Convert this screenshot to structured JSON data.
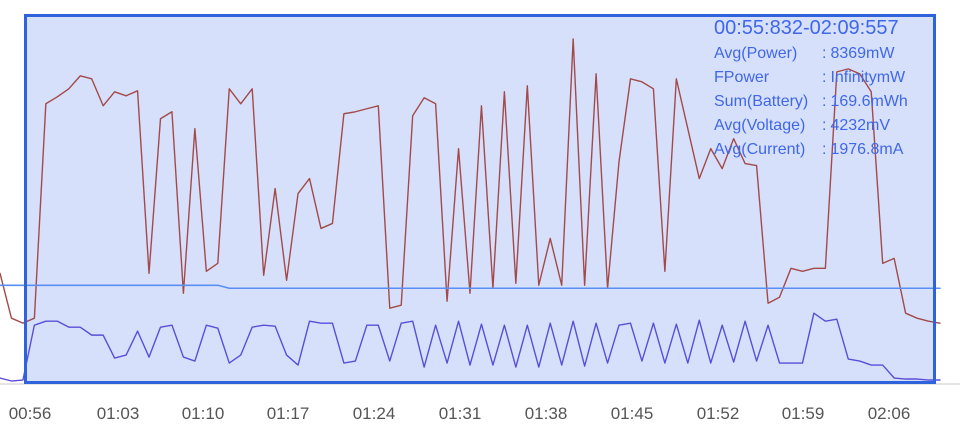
{
  "chart_data": {
    "type": "line",
    "x_ticks": [
      "00:56",
      "01:03",
      "01:10",
      "01:17",
      "01:24",
      "01:31",
      "01:38",
      "01:45",
      "01:52",
      "01:59",
      "02:06"
    ],
    "series": [
      {
        "values": [
          1.1,
          0.65,
          0.6,
          0.65,
          2.8,
          2.87,
          2.95,
          3.08,
          3.05,
          2.78,
          2.92,
          2.88,
          2.93,
          1.1,
          2.65,
          2.72,
          0.9,
          2.55,
          1.12,
          1.2,
          2.95,
          2.8,
          2.95,
          1.08,
          1.95,
          1.03,
          1.9,
          2.05,
          1.55,
          1.6,
          2.7,
          2.72,
          2.75,
          2.78,
          0.75,
          0.78,
          2.68,
          2.86,
          2.8,
          0.82,
          2.35,
          0.9,
          2.78,
          0.95,
          2.92,
          1.0,
          2.98,
          0.98,
          1.45,
          0.98,
          3.45,
          0.98,
          3.1,
          0.95,
          2.22,
          3.05,
          3.02,
          2.95,
          1.12,
          3.05,
          2.55,
          2.05,
          2.35,
          2.15,
          2.45,
          2.2,
          2.18,
          0.8,
          0.86,
          1.15,
          1.12,
          1.15,
          1.15,
          3.12,
          3.15,
          3.1,
          2.92,
          1.2,
          1.25,
          0.7,
          0.65,
          0.62,
          0.6
        ],
        "color": "#a24a4a"
      },
      {
        "values": [
          0.05,
          0.02,
          0.03,
          0.58,
          0.62,
          0.62,
          0.56,
          0.56,
          0.48,
          0.48,
          0.25,
          0.28,
          0.52,
          0.26,
          0.56,
          0.58,
          0.26,
          0.22,
          0.58,
          0.55,
          0.2,
          0.28,
          0.56,
          0.58,
          0.57,
          0.28,
          0.18,
          0.62,
          0.6,
          0.6,
          0.2,
          0.22,
          0.58,
          0.58,
          0.22,
          0.6,
          0.62,
          0.16,
          0.58,
          0.2,
          0.62,
          0.18,
          0.59,
          0.18,
          0.58,
          0.16,
          0.58,
          0.16,
          0.6,
          0.18,
          0.62,
          0.17,
          0.6,
          0.2,
          0.58,
          0.6,
          0.22,
          0.6,
          0.2,
          0.59,
          0.2,
          0.63,
          0.2,
          0.58,
          0.21,
          0.62,
          0.22,
          0.58,
          0.2,
          0.2,
          0.2,
          0.7,
          0.62,
          0.64,
          0.24,
          0.22,
          0.18,
          0.18,
          0.05,
          0.04,
          0.04,
          0.03,
          0.03
        ],
        "color": "#5a4ed8"
      },
      {
        "values": [
          0.98,
          0.98,
          0.98,
          0.98,
          0.98,
          0.98,
          0.98,
          0.98,
          0.98,
          0.98,
          0.98,
          0.98,
          0.98,
          0.98,
          0.98,
          0.98,
          0.98,
          0.98,
          0.98,
          0.98,
          0.95,
          0.95,
          0.95,
          0.95,
          0.95,
          0.95,
          0.95,
          0.95,
          0.95,
          0.95,
          0.95,
          0.95,
          0.95,
          0.95,
          0.95,
          0.95,
          0.95,
          0.95,
          0.95,
          0.95,
          0.95,
          0.95,
          0.95,
          0.95,
          0.95,
          0.95,
          0.95,
          0.95,
          0.95,
          0.95,
          0.95,
          0.95,
          0.95,
          0.95,
          0.95,
          0.95,
          0.95,
          0.95,
          0.95,
          0.95,
          0.95,
          0.95,
          0.95,
          0.95,
          0.95,
          0.95,
          0.95,
          0.95,
          0.95,
          0.95,
          0.95,
          0.95,
          0.95,
          0.95,
          0.95,
          0.95,
          0.95,
          0.95,
          0.95,
          0.95,
          0.95,
          0.95,
          0.95
        ],
        "color": "#5a8ef2"
      }
    ],
    "ylim": [
      0,
      3.6
    ],
    "grid": false
  },
  "overlay": {
    "time_range": "00:55:832-02:09:557",
    "stats": [
      {
        "label": "Avg(Power)",
        "value": "8369mW"
      },
      {
        "label": "FPower",
        "value": "InfinitymW"
      },
      {
        "label": "Sum(Battery)",
        "value": "169.6mWh"
      },
      {
        "label": "Avg(Voltage)",
        "value": "4232mV"
      },
      {
        "label": "Avg(Current)",
        "value": "1976.8mA"
      }
    ]
  },
  "colors": {
    "selection_fill": "#d7e0fb",
    "selection_border": "#2f63db",
    "text_blue": "#3f67ea",
    "axis_text": "#555555",
    "red_series": "#a24a4a",
    "purple_series": "#5a4ed8",
    "blue_series": "#5a8ef2"
  }
}
